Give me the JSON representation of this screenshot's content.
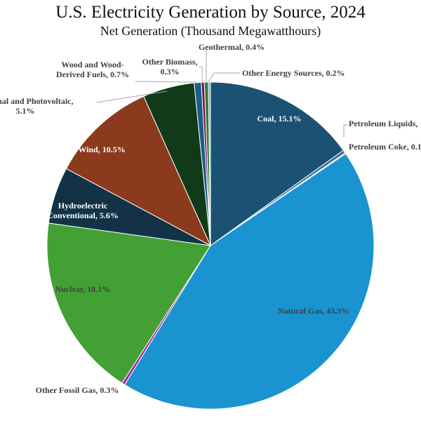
{
  "chart_data": {
    "type": "pie",
    "title": "U.S. Electricity Generation by Source, 2024",
    "subtitle": "Net Generation (Thousand Megawatthours)",
    "start": "top",
    "direction": "clockwise",
    "slices": [
      {
        "name": "Coal",
        "value": 15.1,
        "label": "Coal, 15.1%",
        "color": "#1b5274"
      },
      {
        "name": "Petroleum Liquids",
        "value": 0.3,
        "label": "Petroleum Liquids,",
        "color": "#2c6e9b"
      },
      {
        "name": "Petroleum Coke",
        "value": 0.1,
        "label": "Petroleum Coke, 0.1",
        "color": "#e8742c"
      },
      {
        "name": "Natural Gas",
        "value": 43.3,
        "label": "Natural Gas, 43.3%",
        "color": "#1994d0"
      },
      {
        "name": "Other Fossil Gas",
        "value": 0.3,
        "label": "Other Fossil Gas, 0.3%",
        "color": "#a5279a"
      },
      {
        "name": "Nuclear",
        "value": 18.1,
        "label": "Nuclear, 18.1%",
        "color": "#43a034"
      },
      {
        "name": "Hydroelectric Conventional",
        "value": 5.6,
        "label": [
          "Hydroelectric",
          "Conventional, 5.6%"
        ],
        "color": "#133247"
      },
      {
        "name": "Wind",
        "value": 10.5,
        "label": "Wind, 10.5%",
        "color": "#8b3a1d"
      },
      {
        "name": "Solar Thermal and Photovoltaic",
        "value": 5.1,
        "label": [
          "Thermal and Photovoltaic,",
          "5.1%"
        ],
        "color": "#113a18"
      },
      {
        "name": "Wood and Wood-Derived Fuels",
        "value": 0.7,
        "label": [
          "Wood and Wood-",
          "Derived Fuels, 0.7%"
        ],
        "color": "#1a5e86"
      },
      {
        "name": "Other Biomass",
        "value": 0.3,
        "label": [
          "Other Biomass,",
          "0.3%"
        ],
        "color": "#6b1a5e"
      },
      {
        "name": "Geothermal",
        "value": 0.4,
        "label": "Geothermal, 0.4%",
        "color": "#3d7f2f"
      },
      {
        "name": "Other Energy Sources",
        "value": 0.2,
        "label": "Other Energy Sources, 0.2%",
        "color": "#5cb8e0"
      }
    ]
  }
}
